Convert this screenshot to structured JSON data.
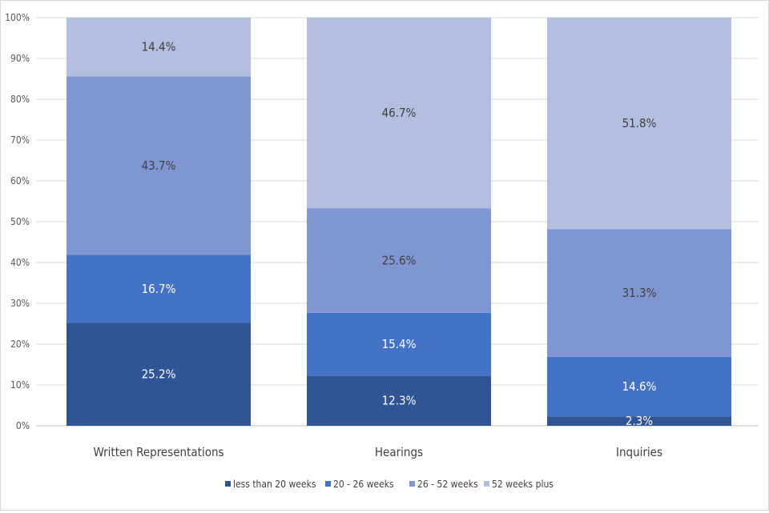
{
  "chart_data": {
    "type": "bar",
    "stacked": true,
    "percent_stacked": true,
    "categories": [
      "Written Representations",
      "Hearings",
      "Inquiries"
    ],
    "series": [
      {
        "name": "less than 20 weeks",
        "color": "#2f5597",
        "label_color": "#ffffff",
        "values": [
          25.2,
          12.3,
          2.3
        ]
      },
      {
        "name": "20 - 26 weeks",
        "color": "#4472c4",
        "label_color": "#ffffff",
        "values": [
          16.7,
          15.4,
          14.6
        ]
      },
      {
        "name": "26 - 52 weeks",
        "color": "#7f96d3",
        "label_color": "#404040",
        "values": [
          43.7,
          25.6,
          31.3
        ]
      },
      {
        "name": "52 weeks plus",
        "color": "#b4bfe0",
        "label_color": "#404040",
        "values": [
          14.4,
          46.7,
          51.8
        ]
      }
    ],
    "data_labels": [
      [
        "25.2%",
        "12.3%",
        "2.3%"
      ],
      [
        "16.7%",
        "15.4%",
        "14.6%"
      ],
      [
        "43.7%",
        "25.6%",
        "31.3%"
      ],
      [
        "14.4%",
        "46.7%",
        "51.8%"
      ]
    ],
    "y_ticks": [
      "0%",
      "10%",
      "20%",
      "30%",
      "40%",
      "50%",
      "60%",
      "70%",
      "80%",
      "90%",
      "100%"
    ],
    "ylim": [
      0,
      100
    ],
    "grid": true,
    "legend_position": "bottom",
    "title": "",
    "xlabel": "",
    "ylabel": ""
  }
}
